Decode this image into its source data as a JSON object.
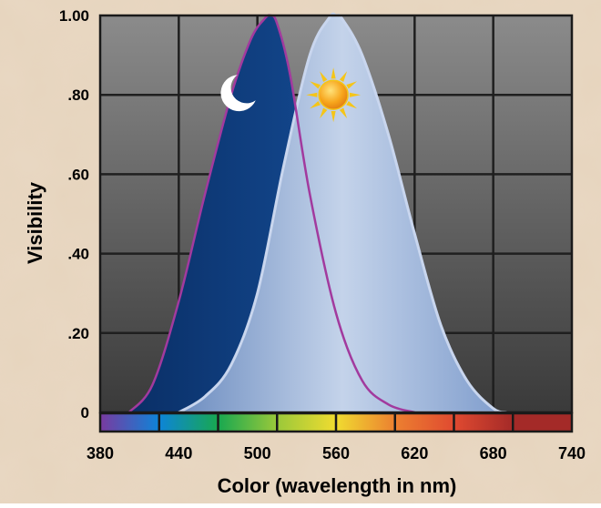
{
  "chart_data": {
    "type": "area",
    "title": "",
    "xlabel": "Color (wavelength in nm)",
    "ylabel": "Visibility",
    "xlim": [
      380,
      740
    ],
    "ylim": [
      0,
      1.0
    ],
    "x_ticks": [
      380,
      440,
      500,
      560,
      620,
      680,
      740
    ],
    "x_tick_labels": [
      "380",
      "440",
      "500",
      "560",
      "620",
      "680",
      "740"
    ],
    "y_ticks": [
      0,
      0.2,
      0.4,
      0.6,
      0.8,
      1.0
    ],
    "y_tick_labels": [
      "0",
      ".20",
      ".40",
      ".60",
      ".80",
      "1.00"
    ],
    "grid": true,
    "series": [
      {
        "icon": "crescent-moon-icon",
        "color": "#0d3a78",
        "line_color": "#a23a9e",
        "x": [
          402,
          420,
          440,
          460,
          480,
          495,
          505,
          510,
          515,
          525,
          540,
          560,
          580,
          600,
          620
        ],
        "y": [
          0.0,
          0.07,
          0.28,
          0.55,
          0.8,
          0.94,
          0.99,
          1.0,
          0.98,
          0.85,
          0.55,
          0.25,
          0.08,
          0.02,
          0.0
        ]
      },
      {
        "icon": "sun-icon",
        "color": "#a9bfe0",
        "x": [
          440,
          460,
          480,
          500,
          520,
          540,
          555,
          560,
          565,
          580,
          600,
          620,
          640,
          660,
          680,
          690
        ],
        "y": [
          0.0,
          0.04,
          0.12,
          0.3,
          0.62,
          0.9,
          0.995,
          1.0,
          0.99,
          0.9,
          0.7,
          0.45,
          0.22,
          0.08,
          0.01,
          0.0
        ]
      }
    ],
    "color_bar": [
      "#7a3aa0",
      "#0d84d8",
      "#18a850",
      "#9ac83a",
      "#f0dc30",
      "#ec8030",
      "#e04a30",
      "#a42a28"
    ]
  }
}
